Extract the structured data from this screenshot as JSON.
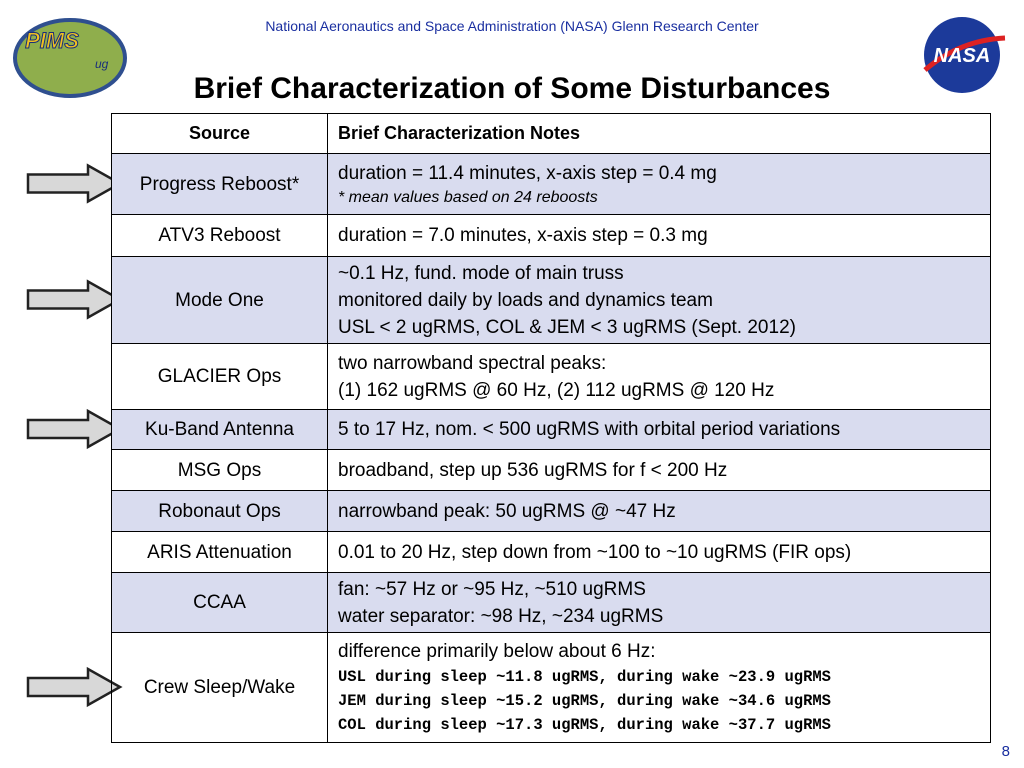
{
  "header": {
    "organization": "National Aeronautics and Space Administration (NASA) Glenn Research Center",
    "left_logo": "PIMS",
    "left_logo_sub": "ug",
    "right_logo": "NASA"
  },
  "title": "Brief Characterization of Some Disturbances",
  "table": {
    "columns": [
      "Source",
      "Brief Characterization Notes"
    ],
    "rows": [
      {
        "source": "Progress Reboost*",
        "shaded": true,
        "arrow": true,
        "notes": [
          "duration = 11.4 minutes, x-axis step = 0.4 mg",
          {
            "text": "* mean values based on 24 reboosts",
            "style": "italic"
          }
        ]
      },
      {
        "source": "ATV3 Reboost",
        "shaded": false,
        "arrow": false,
        "notes": [
          "duration = 7.0 minutes, x-axis step = 0.3 mg"
        ]
      },
      {
        "source": "Mode One",
        "shaded": true,
        "arrow": true,
        "notes": [
          "~0.1 Hz, fund. mode of main truss",
          "monitored daily by loads and dynamics team",
          "USL < 2 ugRMS,  COL & JEM < 3 ugRMS (Sept. 2012)"
        ]
      },
      {
        "source": "GLACIER Ops",
        "shaded": false,
        "arrow": false,
        "notes": [
          "two narrowband spectral peaks:",
          "(1) 162 ugRMS @ 60 Hz, (2) 112 ugRMS @ 120 Hz"
        ]
      },
      {
        "source": "Ku-Band Antenna",
        "shaded": true,
        "arrow": true,
        "notes": [
          "5 to 17 Hz, nom. < 500 ugRMS with orbital period variations"
        ]
      },
      {
        "source": "MSG Ops",
        "shaded": false,
        "arrow": false,
        "notes": [
          "broadband, step up 536 ugRMS for f < 200 Hz"
        ]
      },
      {
        "source": "Robonaut Ops",
        "shaded": true,
        "arrow": false,
        "notes": [
          "narrowband peak: 50 ugRMS @ ~47 Hz"
        ]
      },
      {
        "source": "ARIS Attenuation",
        "shaded": false,
        "arrow": false,
        "notes": [
          "0.01 to 20 Hz, step down from ~100 to ~10 ugRMS (FIR ops)"
        ]
      },
      {
        "source": "CCAA",
        "shaded": true,
        "arrow": false,
        "notes": [
          "fan:    ~57 Hz or ~95 Hz, ~510 ugRMS",
          "water separator: ~98 Hz, ~234 ugRMS"
        ]
      },
      {
        "source": "Crew Sleep/Wake",
        "shaded": false,
        "arrow": true,
        "notes": [
          "difference primarily below about 6 Hz:",
          {
            "text": "USL during sleep ~11.8 ugRMS, during wake ~23.9 ugRMS",
            "style": "mono"
          },
          {
            "text": "JEM during sleep ~15.2 ugRMS, during wake ~34.6 ugRMS",
            "style": "mono"
          },
          {
            "text": "COL during sleep ~17.3 ugRMS, during wake ~37.7 ugRMS",
            "style": "mono"
          }
        ]
      }
    ]
  },
  "page_number": "8"
}
